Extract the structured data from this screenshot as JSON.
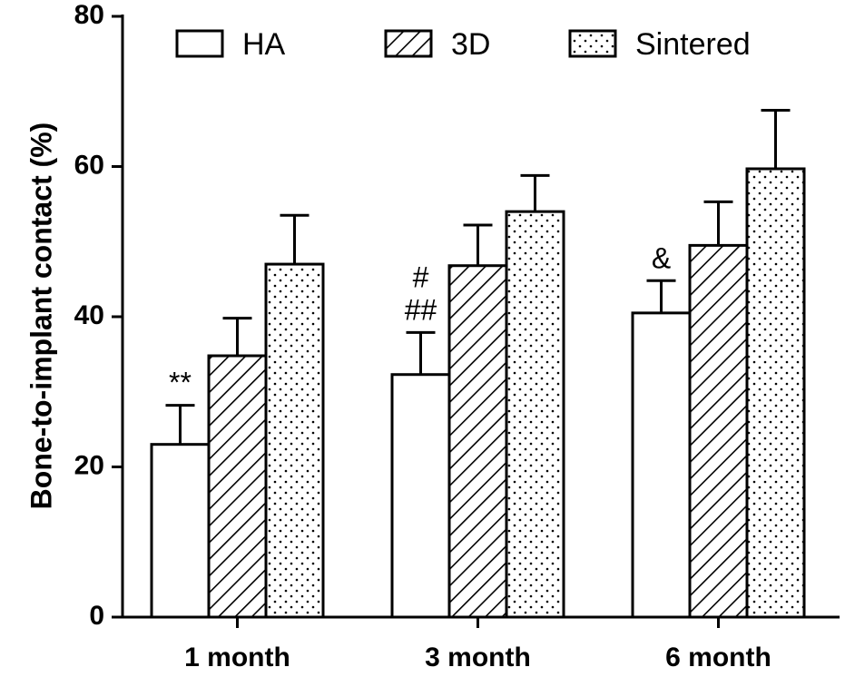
{
  "chart_data": {
    "type": "bar",
    "title": "",
    "xlabel": "",
    "ylabel": "Bone-to-implant contact (%)",
    "ylim": [
      0,
      80
    ],
    "yticks": [
      0,
      20,
      40,
      60,
      80
    ],
    "categories": [
      "1 month",
      "3 month",
      "6 month"
    ],
    "series": [
      {
        "name": "HA",
        "pattern": "plain",
        "values": [
          23,
          32.3,
          40.5
        ],
        "errors": [
          5.2,
          5.6,
          4.3
        ]
      },
      {
        "name": "3D",
        "pattern": "hatch",
        "values": [
          34.8,
          46.8,
          49.5
        ],
        "errors": [
          5.0,
          5.4,
          5.8
        ]
      },
      {
        "name": "Sintered",
        "pattern": "dots",
        "values": [
          47,
          54,
          59.7
        ],
        "errors": [
          6.5,
          4.8,
          7.8
        ]
      }
    ],
    "annotations": [
      {
        "category": 0,
        "series": 0,
        "lines": [
          "**"
        ]
      },
      {
        "category": 1,
        "series": 0,
        "lines": [
          "#",
          "##"
        ]
      },
      {
        "category": 2,
        "series": 0,
        "lines": [
          "&"
        ]
      }
    ],
    "grid": false,
    "legend": "top"
  }
}
